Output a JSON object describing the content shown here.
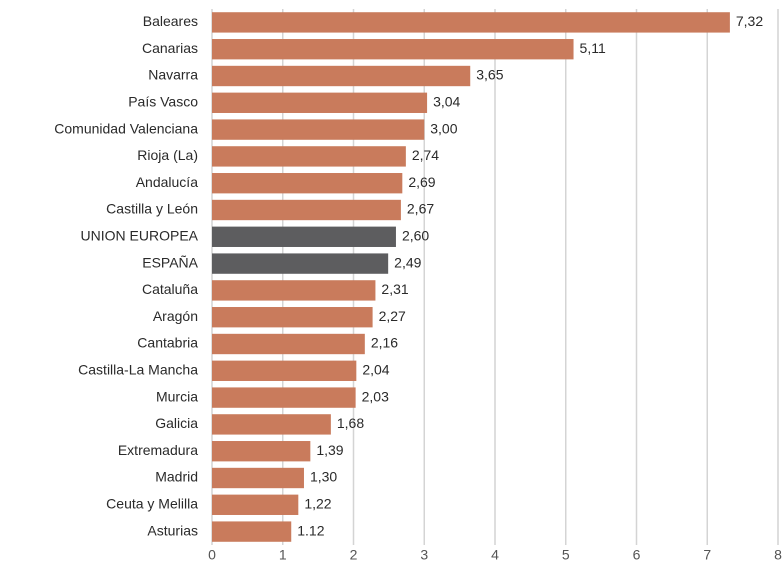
{
  "chart_data": {
    "type": "barh",
    "categories": [
      "Baleares",
      "Canarias",
      "Navarra",
      "País Vasco",
      "Comunidad Valenciana",
      "Rioja (La)",
      "Andalucía",
      "Castilla y León",
      "UNION EUROPEA",
      "ESPAÑA",
      "Cataluña",
      "Aragón",
      "Cantabria",
      "Castilla-La Mancha",
      "Murcia",
      "Galicia",
      "Extremadura",
      "Madrid",
      "Ceuta y Melilla",
      "Asturias"
    ],
    "values": [
      7.32,
      5.11,
      3.65,
      3.04,
      3.0,
      2.74,
      2.69,
      2.67,
      2.6,
      2.49,
      2.31,
      2.27,
      2.16,
      2.04,
      2.03,
      1.68,
      1.39,
      1.3,
      1.22,
      1.12
    ],
    "value_labels": [
      "7,32",
      "5,11",
      "3,65",
      "3,04",
      "3,00",
      "2,74",
      "2,69",
      "2,67",
      "2,60",
      "2,49",
      "2,31",
      "2,27",
      "2,16",
      "2,04",
      "2,03",
      "1,68",
      "1,39",
      "1,30",
      "1,22",
      "1.12"
    ],
    "colors": [
      "#c97b5c",
      "#c97b5c",
      "#c97b5c",
      "#c97b5c",
      "#c97b5c",
      "#c97b5c",
      "#c97b5c",
      "#c97b5c",
      "#5d5d5f",
      "#5d5d5f",
      "#c97b5c",
      "#c97b5c",
      "#c97b5c",
      "#c97b5c",
      "#c97b5c",
      "#c97b5c",
      "#c97b5c",
      "#c97b5c",
      "#c97b5c",
      "#c97b5c"
    ],
    "xlim": [
      0,
      8
    ],
    "xticks": [
      0,
      1,
      2,
      3,
      4,
      5,
      6,
      7,
      8
    ],
    "grid": true
  }
}
